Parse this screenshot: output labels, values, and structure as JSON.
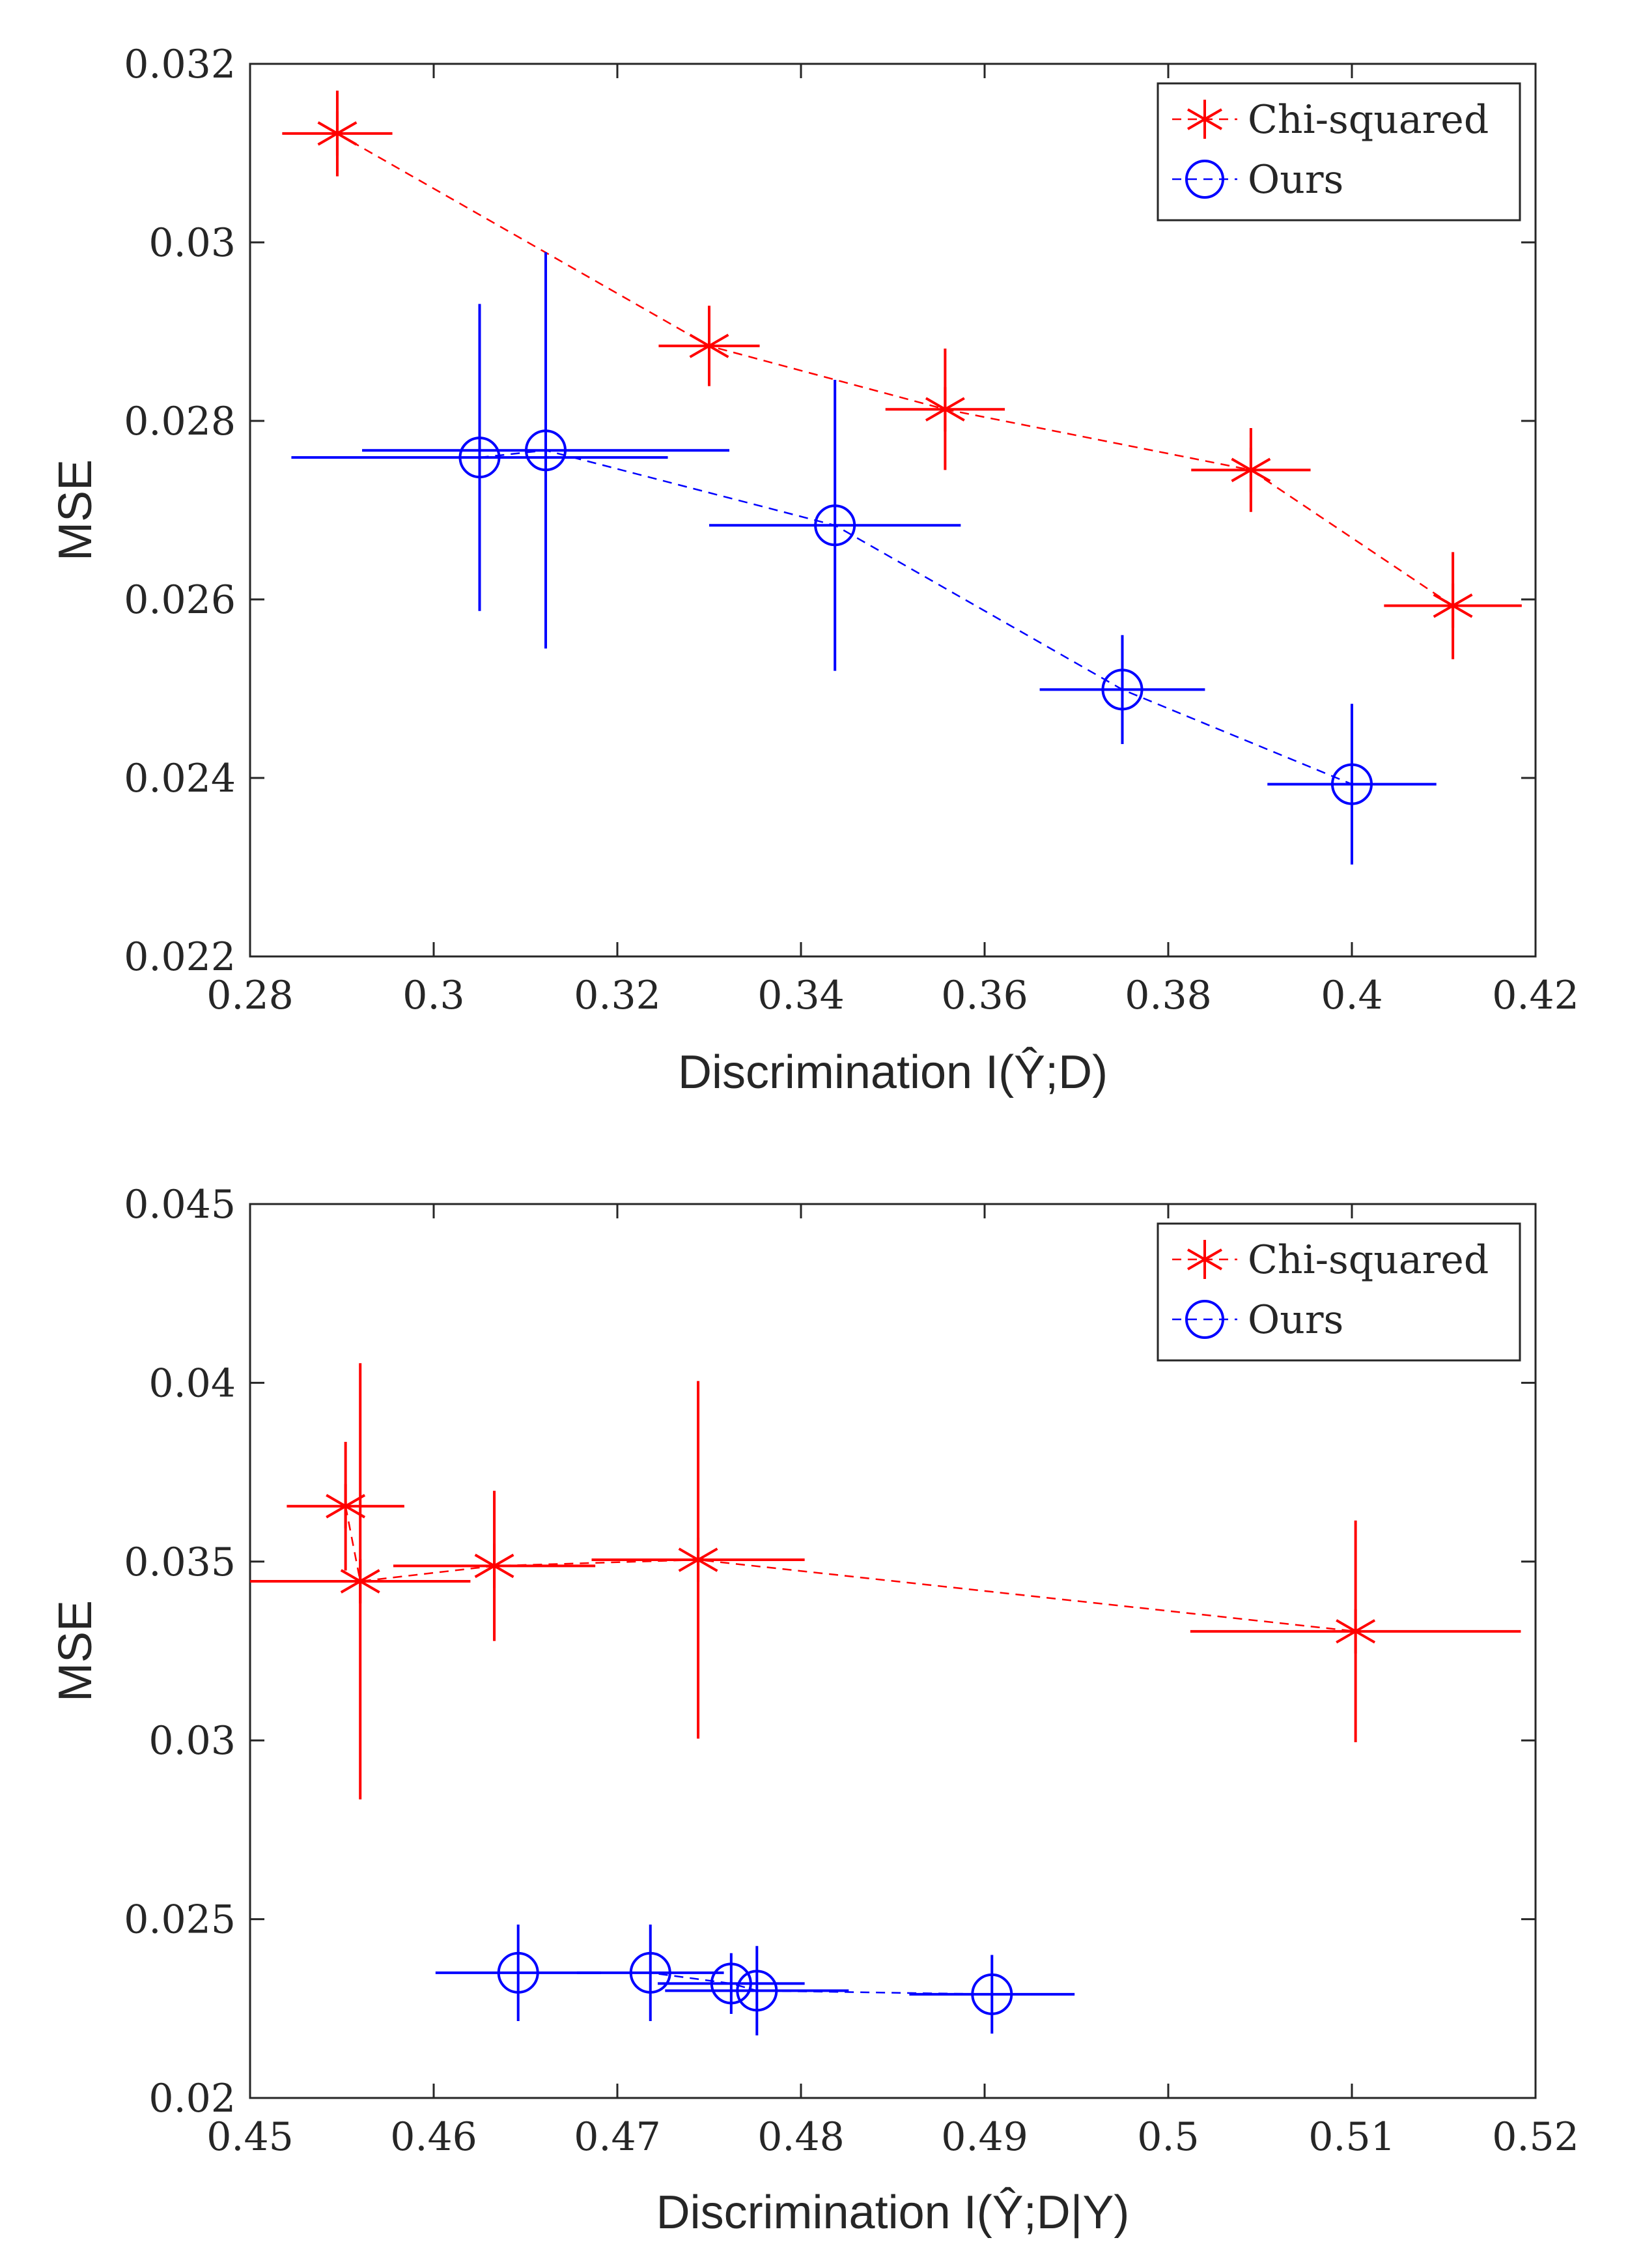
{
  "chart_data": [
    {
      "type": "scatter",
      "xlabel": "Discrimination I(Ŷ;D)",
      "ylabel": "MSE",
      "xlim": [
        0.28,
        0.42
      ],
      "ylim": [
        0.022,
        0.032
      ],
      "xticks": [
        0.28,
        0.3,
        0.32,
        0.34,
        0.36,
        0.38,
        0.4,
        0.42
      ],
      "yticks": [
        0.022,
        0.024,
        0.026,
        0.028,
        0.03,
        0.032
      ],
      "xtick_labels": [
        "0.28",
        "0.3",
        "0.32",
        "0.34",
        "0.36",
        "0.38",
        "0.4",
        "0.42"
      ],
      "ytick_labels": [
        "0.022",
        "0.024",
        "0.026",
        "0.028",
        "0.03",
        "0.032"
      ],
      "legend_position": "top-right",
      "series": [
        {
          "name": "Chi-squared",
          "color": "#ff0000",
          "marker": "asterisk",
          "x": [
            0.2895,
            0.33,
            0.3557,
            0.389,
            0.411
          ],
          "y": [
            0.03122,
            0.02884,
            0.02813,
            0.02745,
            0.02593
          ],
          "xerr": [
            0.006,
            0.0055,
            0.0065,
            0.0065,
            0.0075
          ],
          "yerr": [
            0.00048,
            0.00045,
            0.00068,
            0.00047,
            0.0006
          ]
        },
        {
          "name": "Ours",
          "color": "#0000ff",
          "marker": "circle",
          "x": [
            0.305,
            0.3122,
            0.3437,
            0.375,
            0.4
          ],
          "y": [
            0.02759,
            0.02767,
            0.02683,
            0.02499,
            0.02393
          ],
          "xerr": [
            0.0205,
            0.02,
            0.0137,
            0.009,
            0.0092
          ],
          "yerr": [
            0.00172,
            0.00222,
            0.00163,
            0.00061,
            0.0009
          ]
        }
      ]
    },
    {
      "type": "scatter",
      "xlabel": "Discrimination I(Ŷ;D|Y)",
      "ylabel": "MSE",
      "xlim": [
        0.45,
        0.52
      ],
      "ylim": [
        0.02,
        0.045
      ],
      "xticks": [
        0.45,
        0.46,
        0.47,
        0.48,
        0.49,
        0.5,
        0.51,
        0.52
      ],
      "yticks": [
        0.02,
        0.025,
        0.03,
        0.035,
        0.04,
        0.045
      ],
      "xtick_labels": [
        "0.45",
        "0.46",
        "0.47",
        "0.48",
        "0.49",
        "0.5",
        "0.51",
        "0.52"
      ],
      "ytick_labels": [
        "0.02",
        "0.025",
        "0.03",
        "0.035",
        "0.04",
        "0.045"
      ],
      "legend_position": "top-right",
      "series": [
        {
          "name": "Chi-squared",
          "color": "#ff0000",
          "marker": "asterisk",
          "x": [
            0.4552,
            0.456,
            0.4633,
            0.4744,
            0.5102
          ],
          "y": [
            0.03655,
            0.03445,
            0.03488,
            0.03505,
            0.03305
          ],
          "xerr": [
            0.0032,
            0.006,
            0.0055,
            0.0058,
            0.009
          ],
          "yerr": [
            0.0018,
            0.0061,
            0.0021,
            0.005,
            0.0031
          ]
        },
        {
          "name": "Ours",
          "color": "#0000ff",
          "marker": "circle",
          "x": [
            0.4646,
            0.4718,
            0.4762,
            0.4776,
            0.4904
          ],
          "y": [
            0.0235,
            0.0235,
            0.0232,
            0.023,
            0.0229
          ],
          "xerr": [
            0.0045,
            0.004,
            0.004,
            0.005,
            0.0045
          ],
          "yerr": [
            0.00135,
            0.00135,
            0.00085,
            0.00125,
            0.0011
          ]
        }
      ]
    }
  ]
}
